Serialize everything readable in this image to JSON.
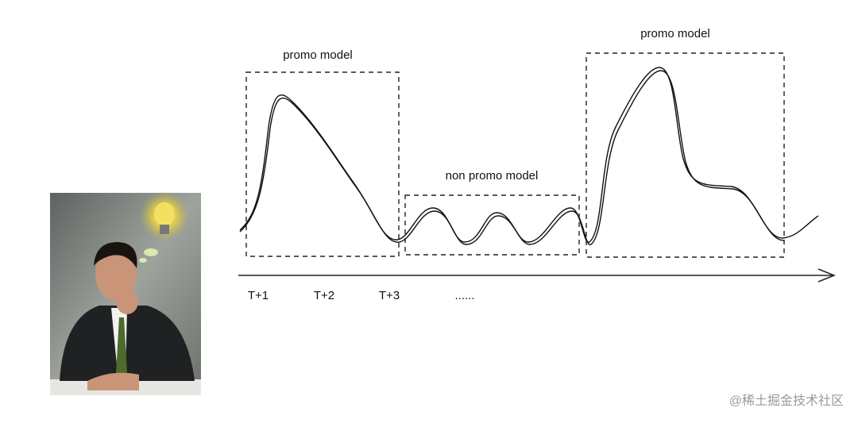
{
  "boxes": [
    {
      "label": "promo model"
    },
    {
      "label": "non promo model"
    },
    {
      "label": "promo model"
    }
  ],
  "timeline": {
    "labels": [
      "T+1",
      "T+2",
      "T+3",
      "......"
    ]
  },
  "watermark": "@稀土掘金技术社区"
}
